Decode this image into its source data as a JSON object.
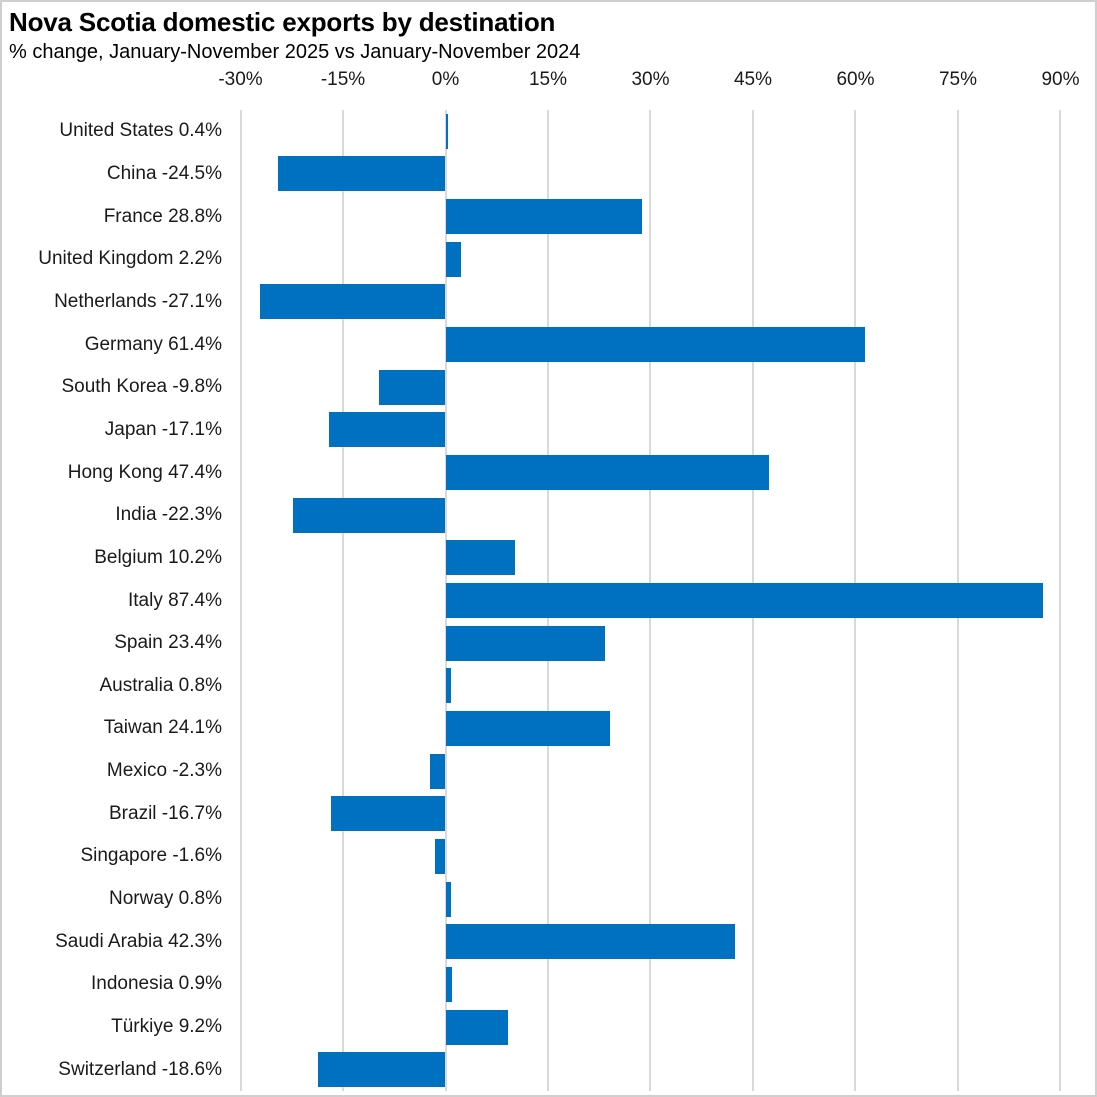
{
  "chart_data": {
    "type": "bar",
    "orientation": "horizontal",
    "title": "Nova Scotia domestic exports by destination",
    "subtitle": "% change, January-November 2025 vs January-November 2024",
    "categories": [
      "United States",
      "China",
      "France",
      "United Kingdom",
      "Netherlands",
      "Germany",
      "South Korea",
      "Japan",
      "Hong Kong",
      "India",
      "Belgium",
      "Italy",
      "Spain",
      "Australia",
      "Taiwan",
      "Mexico",
      "Brazil",
      "Singapore",
      "Norway",
      "Saudi Arabia",
      "Indonesia",
      "Türkiye",
      "Switzerland"
    ],
    "values": [
      0.4,
      -24.5,
      28.8,
      2.2,
      -27.1,
      61.4,
      -9.8,
      -17.1,
      47.4,
      -22.3,
      10.2,
      87.4,
      23.4,
      0.8,
      24.1,
      -2.3,
      -16.7,
      -1.6,
      0.8,
      42.3,
      0.9,
      9.2,
      -18.6
    ],
    "row_labels": [
      "United States 0.4%",
      "China -24.5%",
      "France 28.8%",
      "United Kingdom 2.2%",
      "Netherlands -27.1%",
      "Germany 61.4%",
      "South Korea -9.8%",
      "Japan -17.1%",
      "Hong Kong 47.4%",
      "India -22.3%",
      "Belgium 10.2%",
      "Italy 87.4%",
      "Spain 23.4%",
      "Australia 0.8%",
      "Taiwan 24.1%",
      "Mexico -2.3%",
      "Brazil -16.7%",
      "Singapore -1.6%",
      "Norway 0.8%",
      "Saudi Arabia 42.3%",
      "Indonesia 0.9%",
      "Türkiye 9.2%",
      "Switzerland -18.6%"
    ],
    "x_tick_labels": [
      "-30%",
      "-15%",
      "0%",
      "15%",
      "30%",
      "45%",
      "60%",
      "75%",
      "90%"
    ],
    "x_tick_values": [
      -30,
      -15,
      0,
      15,
      30,
      45,
      60,
      75,
      90
    ],
    "xlim": [
      -30,
      94
    ],
    "grid": true,
    "legend": false,
    "bar_color": "#0070C0",
    "gridline_color": "#d9d9d9",
    "value_suffix": "%"
  }
}
